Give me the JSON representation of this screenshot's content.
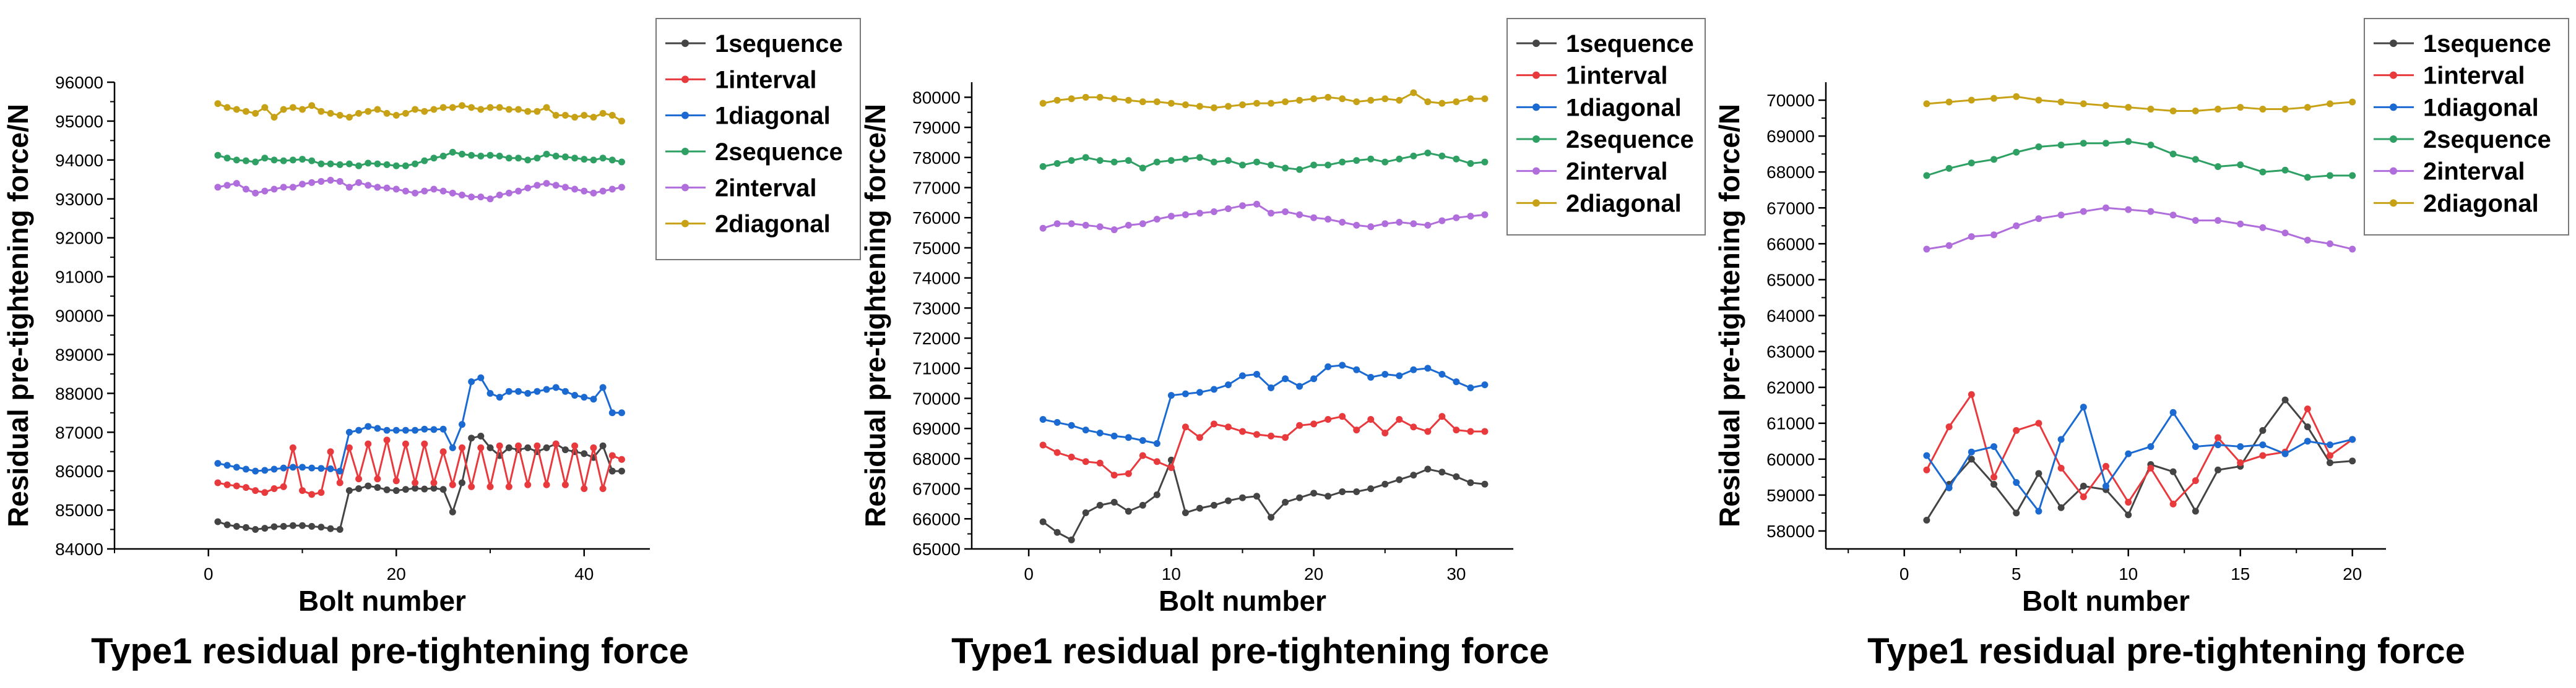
{
  "chart_data": [
    {
      "type": "line",
      "caption": "Type1 residual pre-tightening force",
      "xlabel": "Bolt number",
      "ylabel": "Residual pre-tightening force/N",
      "xlim": [
        -10,
        47
      ],
      "ylim": [
        84000,
        96000
      ],
      "xticks": [
        0,
        20,
        40
      ],
      "xtick_labels": [
        "0",
        "20",
        "40"
      ],
      "yticks": [
        84000,
        85000,
        86000,
        87000,
        88000,
        89000,
        90000,
        91000,
        92000,
        93000,
        94000,
        95000,
        96000
      ],
      "ytick_labels": [
        "84000",
        "85000",
        "86000",
        "87000",
        "88000",
        "89000",
        "90000",
        "91000",
        "92000",
        "93000",
        "94000",
        "95000",
        "96000"
      ],
      "grid": false,
      "legend": "top-right",
      "x": [
        1,
        2,
        3,
        4,
        5,
        6,
        7,
        8,
        9,
        10,
        11,
        12,
        13,
        14,
        15,
        16,
        17,
        18,
        19,
        20,
        21,
        22,
        23,
        24,
        25,
        26,
        27,
        28,
        29,
        30,
        31,
        32,
        33,
        34,
        35,
        36,
        37,
        38,
        39,
        40,
        41,
        42,
        43,
        44
      ],
      "series": [
        {
          "name": "1sequence",
          "color": "#444444",
          "values": [
            84700,
            84620,
            84580,
            84550,
            84500,
            84530,
            84570,
            84580,
            84600,
            84600,
            84580,
            84560,
            84520,
            84500,
            85500,
            85550,
            85620,
            85580,
            85520,
            85500,
            85530,
            85560,
            85540,
            85560,
            85530,
            84950,
            85700,
            86850,
            86900,
            86600,
            86400,
            86600,
            86550,
            86600,
            86500,
            86600,
            86700,
            86550,
            86500,
            86450,
            86350,
            86650,
            86000,
            86000
          ]
        },
        {
          "name": "1interval",
          "color": "#e8393d",
          "values": [
            85700,
            85650,
            85620,
            85580,
            85500,
            85450,
            85550,
            85600,
            86600,
            85500,
            85400,
            85450,
            86500,
            85700,
            86600,
            85800,
            86700,
            85800,
            86800,
            85750,
            86700,
            85700,
            86700,
            85700,
            86500,
            85650,
            86600,
            85600,
            86600,
            85600,
            86650,
            85600,
            86650,
            85650,
            86650,
            85650,
            86700,
            85650,
            86650,
            85550,
            86600,
            85550,
            86400,
            86300
          ]
        },
        {
          "name": "1diagonal",
          "color": "#1b6ad2",
          "values": [
            86200,
            86150,
            86100,
            86050,
            86000,
            86020,
            86050,
            86080,
            86100,
            86100,
            86080,
            86070,
            86060,
            86000,
            87000,
            87050,
            87150,
            87100,
            87050,
            87050,
            87050,
            87050,
            87080,
            87070,
            87080,
            86600,
            87200,
            88300,
            88400,
            88000,
            87900,
            88050,
            88050,
            88000,
            88050,
            88100,
            88150,
            88050,
            87950,
            87900,
            87850,
            88150,
            87500,
            87500
          ]
        },
        {
          "name": "2sequence",
          "color": "#2ea064",
          "values": [
            94120,
            94050,
            94000,
            93980,
            93950,
            94050,
            94000,
            93980,
            94000,
            94020,
            93980,
            93900,
            93900,
            93880,
            93900,
            93850,
            93920,
            93900,
            93880,
            93850,
            93850,
            93900,
            93980,
            94050,
            94100,
            94200,
            94150,
            94120,
            94100,
            94120,
            94100,
            94050,
            94050,
            94000,
            94050,
            94150,
            94100,
            94080,
            94050,
            94020,
            94000,
            94050,
            94000,
            93950
          ]
        },
        {
          "name": "2interval",
          "color": "#b06ddc",
          "values": [
            93300,
            93350,
            93400,
            93250,
            93150,
            93200,
            93250,
            93300,
            93300,
            93380,
            93420,
            93450,
            93480,
            93450,
            93300,
            93420,
            93350,
            93300,
            93280,
            93250,
            93200,
            93150,
            93200,
            93250,
            93200,
            93150,
            93100,
            93050,
            93050,
            93000,
            93100,
            93150,
            93200,
            93280,
            93350,
            93400,
            93350,
            93300,
            93250,
            93200,
            93150,
            93200,
            93250,
            93300
          ]
        },
        {
          "name": "2diagonal",
          "color": "#c8a216",
          "values": [
            95450,
            95350,
            95300,
            95250,
            95200,
            95350,
            95100,
            95300,
            95350,
            95300,
            95400,
            95250,
            95200,
            95150,
            95100,
            95200,
            95250,
            95300,
            95200,
            95150,
            95200,
            95300,
            95250,
            95300,
            95350,
            95350,
            95400,
            95350,
            95300,
            95350,
            95350,
            95300,
            95300,
            95250,
            95250,
            95350,
            95150,
            95150,
            95100,
            95150,
            95100,
            95200,
            95150,
            95000
          ]
        }
      ]
    },
    {
      "type": "line",
      "caption": "Type1 residual pre-tightening force",
      "xlabel": "Bolt number",
      "ylabel": "Residual pre-tightening force/N",
      "xlim": [
        -4,
        34
      ],
      "ylim": [
        65000,
        80500
      ],
      "xticks": [
        0,
        10,
        20,
        30
      ],
      "xtick_labels": [
        "0",
        "10",
        "20",
        "30"
      ],
      "yticks": [
        65000,
        66000,
        67000,
        68000,
        69000,
        70000,
        71000,
        72000,
        73000,
        74000,
        75000,
        76000,
        77000,
        78000,
        79000,
        80000
      ],
      "ytick_labels": [
        "65000",
        "66000",
        "67000",
        "68000",
        "69000",
        "70000",
        "71000",
        "72000",
        "73000",
        "74000",
        "75000",
        "76000",
        "77000",
        "78000",
        "79000",
        "80000"
      ],
      "grid": false,
      "legend": "top-right",
      "x": [
        1,
        2,
        3,
        4,
        5,
        6,
        7,
        8,
        9,
        10,
        11,
        12,
        13,
        14,
        15,
        16,
        17,
        18,
        19,
        20,
        21,
        22,
        23,
        24,
        25,
        26,
        27,
        28,
        29,
        30,
        31,
        32
      ],
      "series": [
        {
          "name": "1sequence",
          "color": "#444444",
          "values": [
            65900,
            65550,
            65300,
            66200,
            66450,
            66550,
            66250,
            66450,
            66800,
            67950,
            66200,
            66350,
            66450,
            66600,
            66700,
            66750,
            66050,
            66550,
            66700,
            66850,
            66750,
            66900,
            66900,
            67000,
            67150,
            67300,
            67450,
            67650,
            67550,
            67400,
            67200,
            67150
          ]
        },
        {
          "name": "1interval",
          "color": "#e8393d",
          "values": [
            68450,
            68200,
            68050,
            67900,
            67850,
            67450,
            67500,
            68100,
            67900,
            67700,
            69050,
            68700,
            69150,
            69050,
            68900,
            68800,
            68750,
            68700,
            69100,
            69150,
            69300,
            69400,
            68950,
            69300,
            68850,
            69300,
            69050,
            68900,
            69400,
            68950,
            68900,
            68900
          ]
        },
        {
          "name": "1diagonal",
          "color": "#1b6ad2",
          "values": [
            69300,
            69200,
            69100,
            68950,
            68850,
            68750,
            68700,
            68600,
            68500,
            70100,
            70150,
            70200,
            70300,
            70450,
            70750,
            70800,
            70350,
            70650,
            70400,
            70650,
            71050,
            71100,
            70950,
            70700,
            70800,
            70750,
            70950,
            71000,
            70800,
            70550,
            70350,
            70450
          ]
        },
        {
          "name": "2sequence",
          "color": "#2ea064",
          "values": [
            77700,
            77800,
            77900,
            78000,
            77900,
            77850,
            77900,
            77650,
            77850,
            77900,
            77950,
            78000,
            77850,
            77900,
            77750,
            77850,
            77750,
            77650,
            77600,
            77750,
            77750,
            77850,
            77900,
            77950,
            77850,
            77950,
            78050,
            78150,
            78050,
            77950,
            77800,
            77850
          ]
        },
        {
          "name": "2interval",
          "color": "#b06ddc",
          "values": [
            75650,
            75800,
            75800,
            75750,
            75700,
            75600,
            75750,
            75800,
            75950,
            76050,
            76100,
            76150,
            76200,
            76300,
            76400,
            76450,
            76150,
            76200,
            76100,
            76000,
            75950,
            75850,
            75750,
            75700,
            75800,
            75850,
            75800,
            75750,
            75900,
            76000,
            76050,
            76100
          ]
        },
        {
          "name": "2diagonal",
          "color": "#c8a216",
          "values": [
            79800,
            79900,
            79950,
            80000,
            80000,
            79950,
            79900,
            79850,
            79850,
            79800,
            79750,
            79700,
            79650,
            79700,
            79750,
            79800,
            79800,
            79850,
            79900,
            79950,
            80000,
            79950,
            79850,
            79900,
            79950,
            79900,
            80150,
            79850,
            79800,
            79850,
            79950,
            79950
          ]
        }
      ]
    },
    {
      "type": "line",
      "caption": "Type1 residual pre-tightening force",
      "xlabel": "Bolt number",
      "ylabel": "Residual pre-tightening force/N",
      "xlim": [
        -3.5,
        21.5
      ],
      "ylim": [
        57500,
        70500
      ],
      "xticks": [
        0,
        5,
        10,
        15,
        20
      ],
      "xtick_labels": [
        "0",
        "5",
        "10",
        "15",
        "20"
      ],
      "yticks": [
        58000,
        59000,
        60000,
        61000,
        62000,
        63000,
        64000,
        65000,
        66000,
        67000,
        68000,
        69000,
        70000
      ],
      "ytick_labels": [
        "58000",
        "59000",
        "60000",
        "61000",
        "62000",
        "63000",
        "64000",
        "65000",
        "66000",
        "67000",
        "68000",
        "69000",
        "70000"
      ],
      "grid": false,
      "legend": "top-right",
      "x": [
        1,
        2,
        3,
        4,
        5,
        6,
        7,
        8,
        9,
        10,
        11,
        12,
        13,
        14,
        15,
        16,
        17,
        18,
        19,
        20
      ],
      "series": [
        {
          "name": "1sequence",
          "color": "#444444",
          "values": [
            58300,
            59300,
            60000,
            59300,
            58500,
            59600,
            58650,
            59250,
            59150,
            58450,
            59850,
            59650,
            58550,
            59700,
            59800,
            60800,
            61650,
            60900,
            59900,
            59950
          ]
        },
        {
          "name": "1interval",
          "color": "#e8393d",
          "values": [
            59700,
            60900,
            61800,
            59500,
            60800,
            61000,
            59750,
            58950,
            59800,
            58800,
            59750,
            58750,
            59400,
            60600,
            59900,
            60100,
            60200,
            61400,
            60100,
            60550
          ]
        },
        {
          "name": "1diagonal",
          "color": "#1b6ad2",
          "values": [
            60100,
            59200,
            60200,
            60350,
            59350,
            58550,
            60550,
            61450,
            59250,
            60150,
            60350,
            61300,
            60350,
            60400,
            60350,
            60400,
            60150,
            60500,
            60400,
            60550
          ]
        },
        {
          "name": "2sequence",
          "color": "#2ea064",
          "values": [
            67900,
            68100,
            68250,
            68350,
            68550,
            68700,
            68750,
            68800,
            68800,
            68850,
            68750,
            68500,
            68350,
            68150,
            68200,
            68000,
            68050,
            67850,
            67900,
            67900
          ]
        },
        {
          "name": "2interval",
          "color": "#b06ddc",
          "values": [
            65850,
            65950,
            66200,
            66250,
            66500,
            66700,
            66800,
            66900,
            67000,
            66950,
            66900,
            66800,
            66650,
            66650,
            66550,
            66450,
            66300,
            66100,
            66000,
            65850
          ]
        },
        {
          "name": "2diagonal",
          "color": "#c8a216",
          "values": [
            69900,
            69950,
            70000,
            70050,
            70100,
            70000,
            69950,
            69900,
            69850,
            69800,
            69750,
            69700,
            69700,
            69750,
            69800,
            69750,
            69750,
            69800,
            69900,
            69950
          ]
        }
      ]
    }
  ]
}
